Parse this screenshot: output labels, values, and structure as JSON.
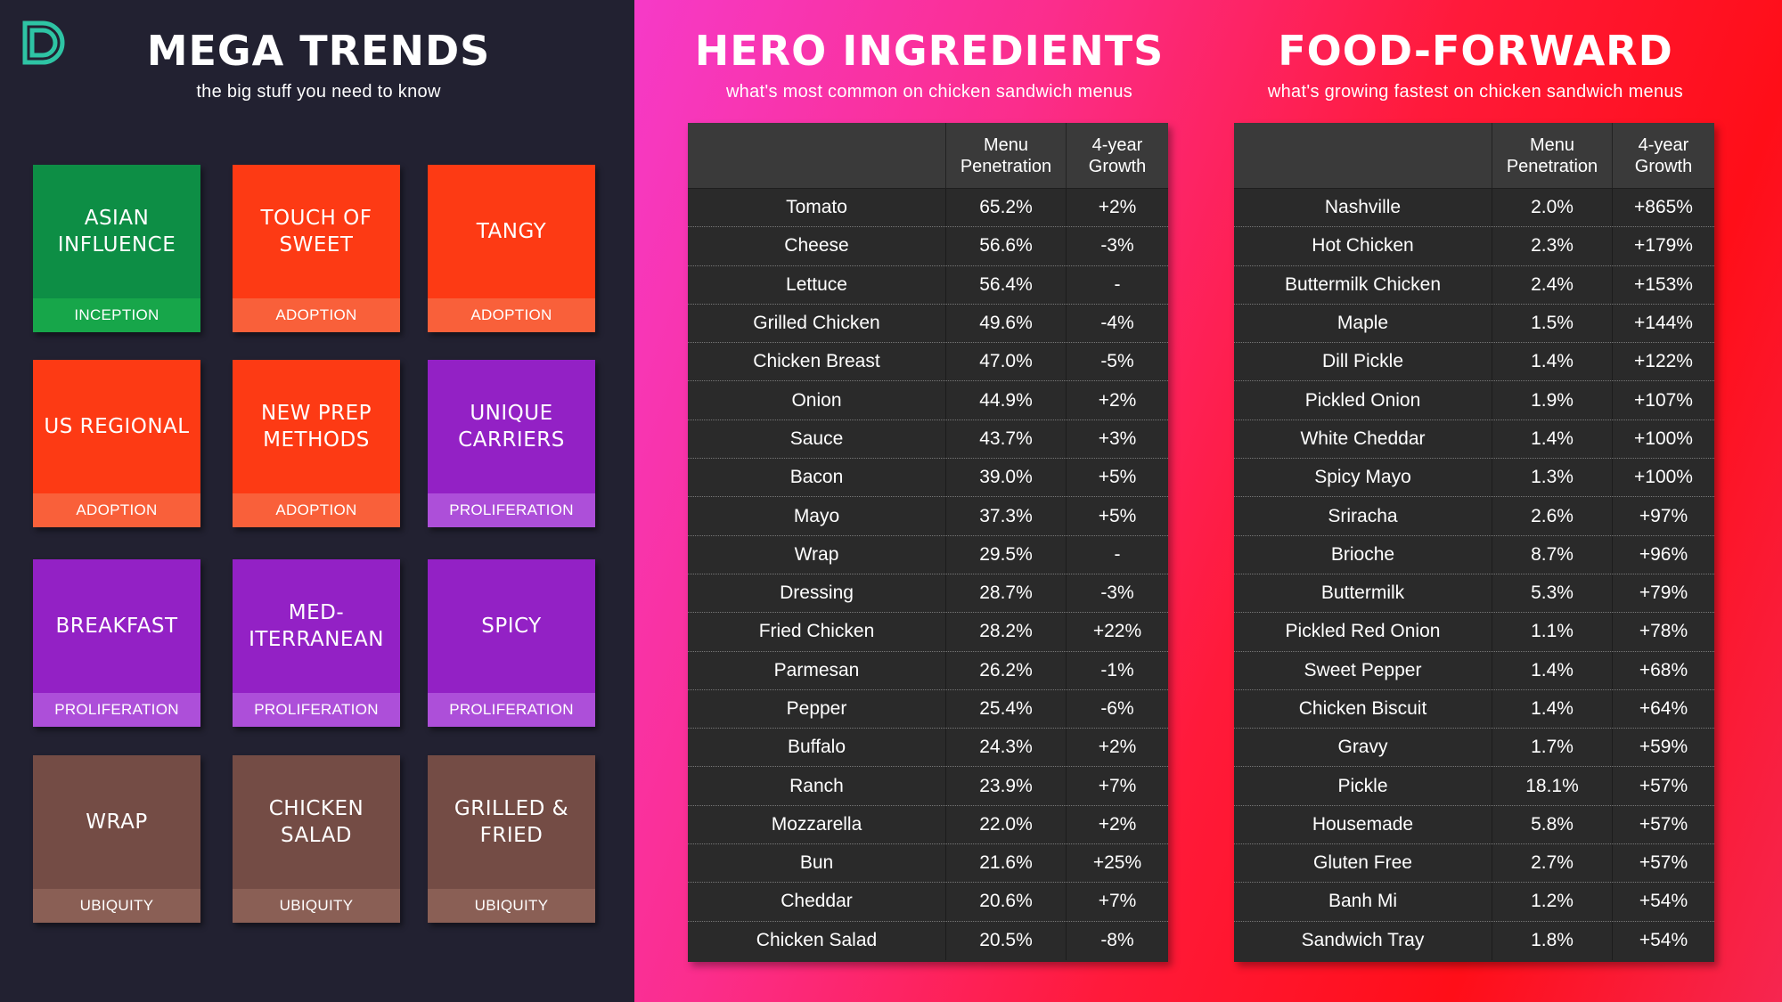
{
  "mega": {
    "title": "MEGA TRENDS",
    "subtitle": "the big stuff you need to know",
    "tiles": [
      {
        "name": "ASIAN\nINFLUENCE",
        "stage": "INCEPTION",
        "color": "#0d8e45",
        "stage_color": "#17a64a"
      },
      {
        "name": "TOUCH OF\nSWEET",
        "stage": "ADOPTION",
        "color": "#fd3a14",
        "stage_color": "#f9603a"
      },
      {
        "name": "TANGY",
        "stage": "ADOPTION",
        "color": "#fd3a14",
        "stage_color": "#f9603a"
      },
      {
        "name": "US REGIONAL",
        "stage": "ADOPTION",
        "color": "#fd3a14",
        "stage_color": "#f9603a"
      },
      {
        "name": "NEW PREP\nMETHODS",
        "stage": "ADOPTION",
        "color": "#fd3a14",
        "stage_color": "#f9603a"
      },
      {
        "name": "UNIQUE\nCARRIERS",
        "stage": "PROLIFERATION",
        "color": "#9321c5",
        "stage_color": "#ad4fd9"
      },
      {
        "name": "BREAKFAST",
        "stage": "PROLIFERATION",
        "color": "#9321c5",
        "stage_color": "#ad4fd9"
      },
      {
        "name": "MED-\nITERRANEAN",
        "stage": "PROLIFERATION",
        "color": "#9321c5",
        "stage_color": "#ad4fd9"
      },
      {
        "name": "SPICY",
        "stage": "PROLIFERATION",
        "color": "#9321c5",
        "stage_color": "#ad4fd9"
      },
      {
        "name": "WRAP",
        "stage": "UBIQUITY",
        "color": "#744c45",
        "stage_color": "#8a5f55"
      },
      {
        "name": "CHICKEN\nSALAD",
        "stage": "UBIQUITY",
        "color": "#744c45",
        "stage_color": "#8a5f55"
      },
      {
        "name": "GRILLED &\nFRIED",
        "stage": "UBIQUITY",
        "color": "#744c45",
        "stage_color": "#8a5f55"
      }
    ]
  },
  "hero": {
    "title": "HERO INGREDIENTS",
    "subtitle": "what's most common on chicken sandwich menus",
    "col_penetration": "Menu\nPenetration",
    "col_growth": "4-year\nGrowth",
    "rows": [
      [
        "Tomato",
        "65.2%",
        "+2%"
      ],
      [
        "Cheese",
        "56.6%",
        "-3%"
      ],
      [
        "Lettuce",
        "56.4%",
        "-"
      ],
      [
        "Grilled Chicken",
        "49.6%",
        "-4%"
      ],
      [
        "Chicken Breast",
        "47.0%",
        "-5%"
      ],
      [
        "Onion",
        "44.9%",
        "+2%"
      ],
      [
        "Sauce",
        "43.7%",
        "+3%"
      ],
      [
        "Bacon",
        "39.0%",
        "+5%"
      ],
      [
        "Mayo",
        "37.3%",
        "+5%"
      ],
      [
        "Wrap",
        "29.5%",
        "-"
      ],
      [
        "Dressing",
        "28.7%",
        "-3%"
      ],
      [
        "Fried Chicken",
        "28.2%",
        "+22%"
      ],
      [
        "Parmesan",
        "26.2%",
        "-1%"
      ],
      [
        "Pepper",
        "25.4%",
        "-6%"
      ],
      [
        "Buffalo",
        "24.3%",
        "+2%"
      ],
      [
        "Ranch",
        "23.9%",
        "+7%"
      ],
      [
        "Mozzarella",
        "22.0%",
        "+2%"
      ],
      [
        "Bun",
        "21.6%",
        "+25%"
      ],
      [
        "Cheddar",
        "20.6%",
        "+7%"
      ],
      [
        "Chicken Salad",
        "20.5%",
        "-8%"
      ]
    ]
  },
  "food": {
    "title": "FOOD-FORWARD",
    "subtitle": "what's growing fastest on chicken sandwich menus",
    "col_penetration": "Menu\nPenetration",
    "col_growth": "4-year\nGrowth",
    "rows": [
      [
        "Nashville",
        "2.0%",
        "+865%"
      ],
      [
        "Hot Chicken",
        "2.3%",
        "+179%"
      ],
      [
        "Buttermilk Chicken",
        "2.4%",
        "+153%"
      ],
      [
        "Maple",
        "1.5%",
        "+144%"
      ],
      [
        "Dill Pickle",
        "1.4%",
        "+122%"
      ],
      [
        "Pickled Onion",
        "1.9%",
        "+107%"
      ],
      [
        "White Cheddar",
        "1.4%",
        "+100%"
      ],
      [
        "Spicy Mayo",
        "1.3%",
        "+100%"
      ],
      [
        "Sriracha",
        "2.6%",
        "+97%"
      ],
      [
        "Brioche",
        "8.7%",
        "+96%"
      ],
      [
        "Buttermilk",
        "5.3%",
        "+79%"
      ],
      [
        "Pickled Red Onion",
        "1.1%",
        "+78%"
      ],
      [
        "Sweet Pepper",
        "1.4%",
        "+68%"
      ],
      [
        "Chicken Biscuit",
        "1.4%",
        "+64%"
      ],
      [
        "Gravy",
        "1.7%",
        "+59%"
      ],
      [
        "Pickle",
        "18.1%",
        "+57%"
      ],
      [
        "Housemade",
        "5.8%",
        "+57%"
      ],
      [
        "Gluten Free",
        "2.7%",
        "+57%"
      ],
      [
        "Banh Mi",
        "1.2%",
        "+54%"
      ],
      [
        "Sandwich Tray",
        "1.8%",
        "+54%"
      ]
    ]
  },
  "colors": {
    "dark_bg": "#222131",
    "logo": "#2ec4a4"
  }
}
